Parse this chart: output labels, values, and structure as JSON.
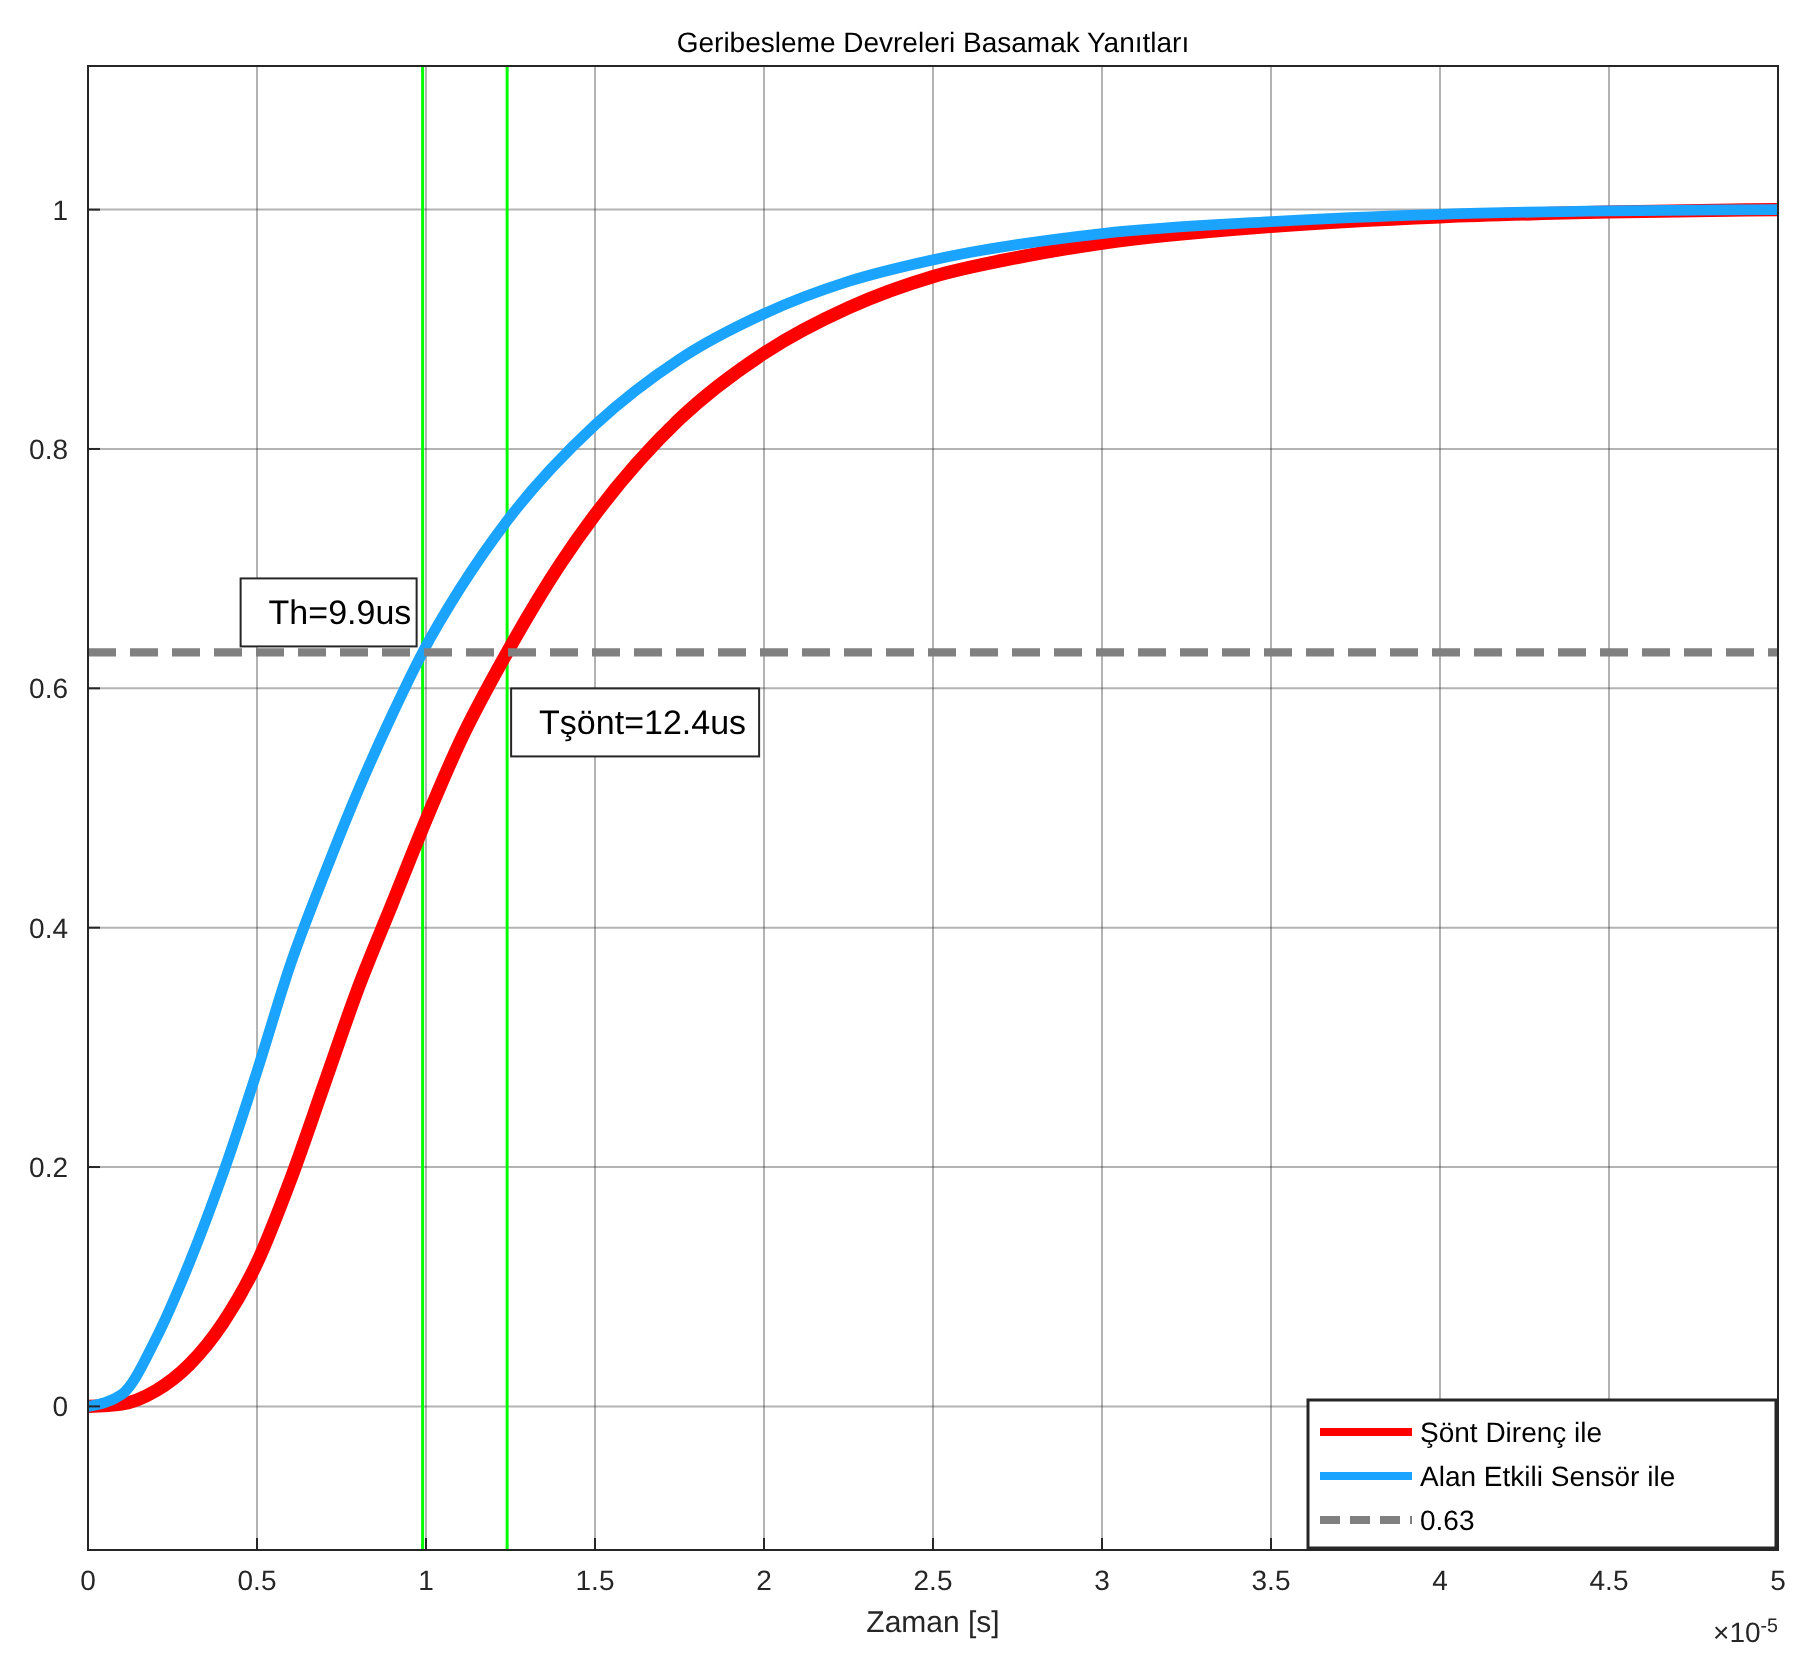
{
  "chart_data": {
    "type": "line",
    "title": "Geribesleme Devreleri Basamak Yanıtları",
    "xlabel": "Zaman [s]",
    "xlim": [
      0,
      5
    ],
    "xticks": [
      0,
      0.5,
      1,
      1.5,
      2,
      2.5,
      3,
      3.5,
      4,
      4.5,
      5
    ],
    "ylim": [
      -0.12,
      1.12
    ],
    "yticks": [
      0,
      0.2,
      0.4,
      0.6,
      0.8,
      1
    ],
    "grid": true,
    "legend": "bottom right",
    "series": [
      {
        "name": "Şönt Direnç ile",
        "color": "#ff0000",
        "x": [
          0,
          0.1,
          0.2,
          0.3,
          0.4,
          0.5,
          0.6,
          0.7,
          0.8,
          0.9,
          1,
          1.1,
          1.24,
          1.4,
          1.5,
          1.75,
          2,
          2.25,
          2.5,
          2.75,
          3,
          3.5,
          4,
          4.5,
          5
        ],
        "values": [
          0,
          0.002,
          0.013,
          0.035,
          0.07,
          0.12,
          0.19,
          0.27,
          0.35,
          0.42,
          0.49,
          0.555,
          0.63,
          0.705,
          0.745,
          0.825,
          0.88,
          0.918,
          0.944,
          0.96,
          0.972,
          0.986,
          0.994,
          0.998,
          1
        ]
      },
      {
        "name": "Alan Etkili Sensör ile",
        "color": "#1aa3ff",
        "x": [
          0,
          0.1,
          0.2,
          0.3,
          0.4,
          0.5,
          0.6,
          0.7,
          0.8,
          0.9,
          0.99,
          1.1,
          1.24,
          1.5,
          1.75,
          2,
          2.25,
          2.5,
          3,
          3.5,
          4,
          4.5,
          5
        ],
        "values": [
          0,
          0.01,
          0.056,
          0.12,
          0.195,
          0.28,
          0.37,
          0.445,
          0.515,
          0.578,
          0.63,
          0.683,
          0.74,
          0.82,
          0.875,
          0.913,
          0.94,
          0.958,
          0.98,
          0.99,
          0.996,
          0.999,
          1
        ]
      },
      {
        "name": "0.63",
        "color": "#808080",
        "line_style": "dashed",
        "x": [
          0,
          5
        ],
        "values": [
          0.63,
          0.63
        ]
      }
    ],
    "ref_lines": [
      {
        "axis": "x",
        "value": 0.99,
        "color": "#00ff00"
      },
      {
        "axis": "x",
        "value": 1.24,
        "color": "#00ff00"
      }
    ],
    "annotations": [
      {
        "text": "Th=9.9us",
        "x": 0.99,
        "y": 0.63
      },
      {
        "text": "Tşönt=12.4us",
        "x": 1.24,
        "y": 0.63
      },
      "×10$^{-5}$"
    ]
  }
}
